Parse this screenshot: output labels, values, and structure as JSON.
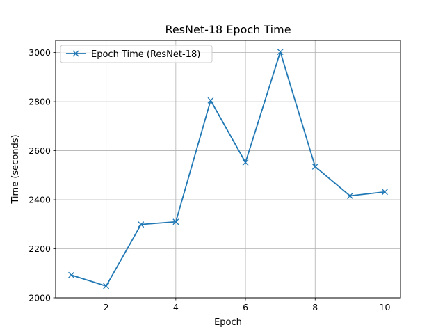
{
  "chart_data": {
    "type": "line",
    "title": "ResNet-18 Epoch Time",
    "xlabel": "Epoch",
    "ylabel": "Time (seconds)",
    "x": [
      1,
      2,
      3,
      4,
      5,
      6,
      7,
      8,
      9,
      10
    ],
    "series": [
      {
        "name": "Epoch Time (ResNet-18)",
        "values": [
          2093,
          2048,
          2299,
          2310,
          2805,
          2552,
          3003,
          2535,
          2416,
          2432
        ],
        "color": "#1f77b4",
        "marker": "x"
      }
    ],
    "xlim": [
      0.55,
      10.45
    ],
    "ylim": [
      2000,
      3050
    ],
    "xticks": [
      2,
      4,
      6,
      8,
      10
    ],
    "yticks": [
      2000,
      2200,
      2400,
      2600,
      2800,
      3000
    ],
    "grid": true,
    "legend_position": "top-left"
  }
}
